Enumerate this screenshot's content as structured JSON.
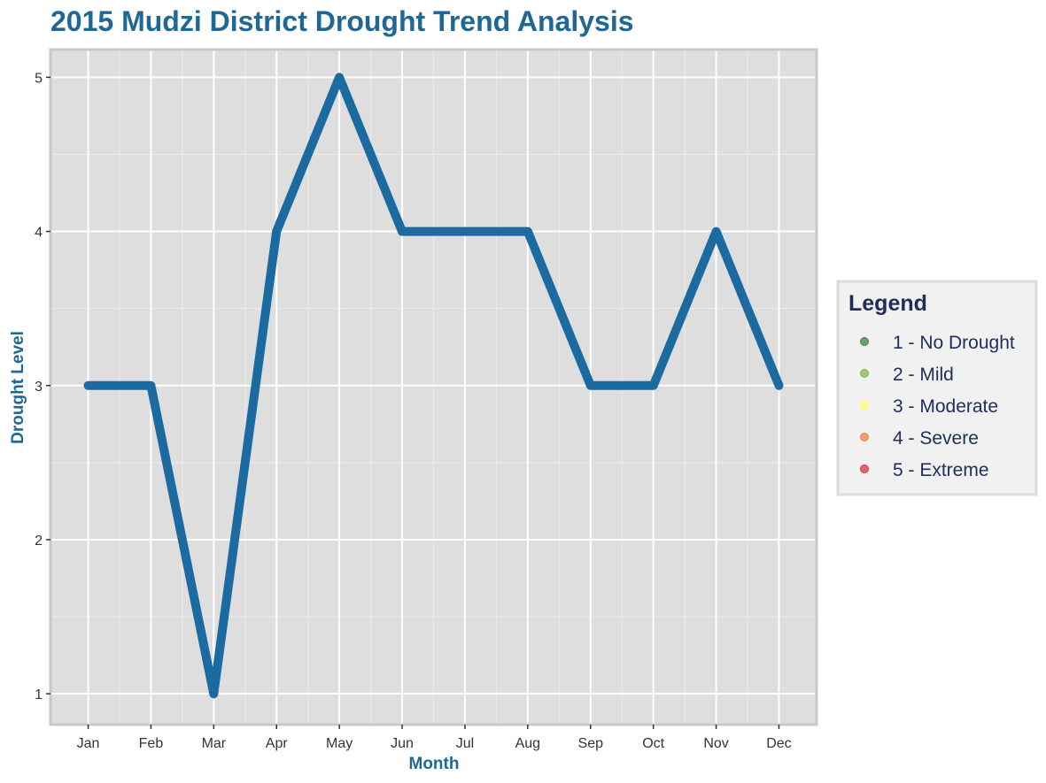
{
  "chart_data": {
    "type": "line",
    "title": "2015 Mudzi District Drought Trend Analysis",
    "xlabel": "Month",
    "ylabel": "Drought Level",
    "categories": [
      "Jan",
      "Feb",
      "Mar",
      "Apr",
      "May",
      "Jun",
      "Jul",
      "Aug",
      "Sep",
      "Oct",
      "Nov",
      "Dec"
    ],
    "series": [
      {
        "values": [
          3,
          3,
          1,
          4,
          5,
          4,
          4,
          4,
          3,
          3,
          4,
          3
        ],
        "color": "#1b6aa0"
      }
    ],
    "ylim": [
      0.8,
      5.18
    ],
    "yticks": [
      1,
      2,
      3,
      4,
      5
    ],
    "grid": true,
    "legend": {
      "title": "Legend",
      "placement": "right",
      "entries": [
        {
          "label": "1 - No Drought",
          "color": "#2e7d32"
        },
        {
          "label": "2 - Mild",
          "color": "#7cb342"
        },
        {
          "label": "3 - Moderate",
          "color": "#ffff66"
        },
        {
          "label": "4 - Severe",
          "color": "#e67e45"
        },
        {
          "label": "5 - Extreme",
          "color": "#d32f2f"
        }
      ]
    }
  },
  "colors": {
    "title": "#1f6896",
    "axis_title": "#1f6896",
    "legend_text": "#1f2d5a",
    "panel_bg": "#dedede",
    "panel_border": "#c8c8c8",
    "grid_major": "#ffffff",
    "grid_minor": "#ececec",
    "legend_bg": "#f1f1f1"
  }
}
